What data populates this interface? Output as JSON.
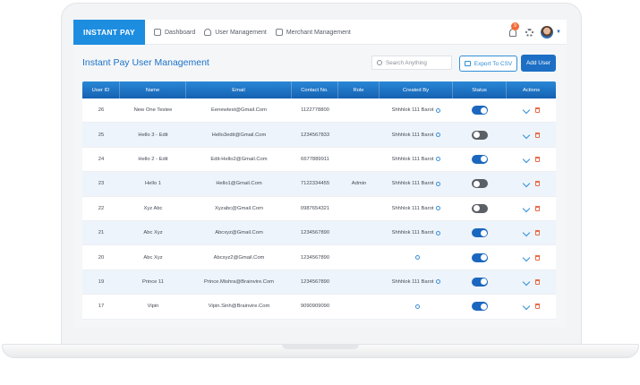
{
  "app": {
    "brand": "INSTANT PAY",
    "nav": [
      {
        "label": "Dashboard",
        "icon": "dashboard-icon"
      },
      {
        "label": "User Management",
        "icon": "user-icon"
      },
      {
        "label": "Merchant Management",
        "icon": "building-icon"
      }
    ],
    "notifications_count": "9"
  },
  "page": {
    "title": "Instant Pay User Management",
    "search_placeholder": "Search Anything",
    "export_label": "Export To CSV",
    "add_user_label": "Add User"
  },
  "table": {
    "headers": [
      "User ID",
      "Name",
      "Email",
      "Contact No.",
      "Role",
      "Created By",
      "Status",
      "Actions"
    ],
    "rows": [
      {
        "id": "26",
        "name": "New One Testee",
        "email": "Eenewtest@Gmail.Com",
        "contact": "1122778800",
        "role": "",
        "created_by": "Shhhlok 111 Barot",
        "status": "on"
      },
      {
        "id": "25",
        "name": "Hello 3 - Edit",
        "email": "Hello3edit@Gmail.Com",
        "contact": "1234567833",
        "role": "",
        "created_by": "Shhhlok 111 Barot",
        "status": "off"
      },
      {
        "id": "24",
        "name": "Hello 2 - Edit",
        "email": "Edit-Hello2@Gmail.Com",
        "contact": "6677889911",
        "role": "",
        "created_by": "Shhhlok 111 Barot",
        "status": "on"
      },
      {
        "id": "23",
        "name": "Hello 1",
        "email": "Hello1@Gmail.Com",
        "contact": "7122334455",
        "role": "Admin",
        "created_by": "Shhhlok 111 Barot",
        "status": "off"
      },
      {
        "id": "22",
        "name": "Xyz Abc",
        "email": "Xyzabc@Gmail.Com",
        "contact": "0987654321",
        "role": "",
        "created_by": "Shhhlok 111 Barot",
        "status": "off"
      },
      {
        "id": "21",
        "name": "Abc Xyz",
        "email": "Abcxyz@Gmail.Com",
        "contact": "1234567890",
        "role": "",
        "created_by": "Shhhlok 111 Barot",
        "status": "on"
      },
      {
        "id": "20",
        "name": "Abc Xyz",
        "email": "Abcxyz2@Gmail.Com",
        "contact": "1234567890",
        "role": "",
        "created_by": "",
        "status": "on"
      },
      {
        "id": "19",
        "name": "Prince 11",
        "email": "Prince.Mishra@Brainvire.Com",
        "contact": "1234567890",
        "role": "",
        "created_by": "Shhhlok 111 Barot",
        "status": "on"
      },
      {
        "id": "17",
        "name": "Vipin",
        "email": "Vipin.Sinh@Brainvire.Com",
        "contact": "9090909090",
        "role": "",
        "created_by": "",
        "status": "on"
      }
    ]
  },
  "colors": {
    "accent": "#1d8de0",
    "toggle_on": "#1b67bf",
    "toggle_off": "#5b5f66",
    "delete": "#e86b4a"
  }
}
